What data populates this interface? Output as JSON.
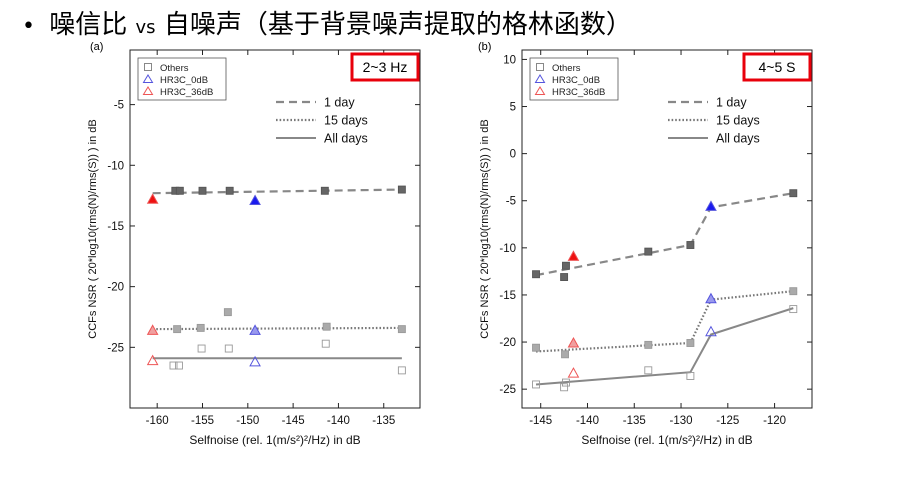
{
  "title": {
    "bullet": "•",
    "part1": "噪信比",
    "part2": "vs",
    "part3": "自噪声（基于背景噪声提取的格林函数）"
  },
  "chart_data": [
    {
      "type": "scatter",
      "panel_label": "(a)",
      "badge": "2~3 Hz",
      "badge_color": "#e8000b",
      "xlabel": "Selfnoise (rel. 1(m/s²)²/Hz) in dB",
      "ylabel": "CCFs NSR ( 20*log10(rms(N)/rms(S)) ) in dB",
      "xlim": [
        -163,
        -131
      ],
      "ylim": [
        -30,
        -0.5
      ],
      "xticks": [
        -160,
        -155,
        -150,
        -145,
        -140,
        -135
      ],
      "yticks": [
        -5,
        -10,
        -15,
        -20,
        -25
      ],
      "legend_markers": [
        "Others",
        "HR3C_0dB",
        "HR3C_36dB"
      ],
      "legend_lines": [
        "1 day",
        "15 days",
        "All days"
      ],
      "grid": false,
      "series": [
        {
          "period": "1 day",
          "style": "filled",
          "others": [
            [
              -158,
              -12.1
            ],
            [
              -157.5,
              -12.1
            ],
            [
              -155,
              -12.1
            ],
            [
              -152,
              -12.1
            ],
            [
              -141.5,
              -12.1
            ],
            [
              -133,
              -12.0
            ]
          ],
          "hr3c_0db": [
            [
              -149.2,
              -12.9
            ]
          ],
          "hr3c_36db": [
            [
              -160.5,
              -12.8
            ]
          ],
          "fit": [
            [
              -160.5,
              -12.3
            ],
            [
              -133,
              -12.0
            ]
          ]
        },
        {
          "period": "15 days",
          "style": "half",
          "others": [
            [
              -157.8,
              -23.5
            ],
            [
              -155.2,
              -23.4
            ],
            [
              -152.2,
              -22.1
            ],
            [
              -141.3,
              -23.3
            ],
            [
              -133,
              -23.5
            ]
          ],
          "hr3c_0db": [
            [
              -149.2,
              -23.6
            ]
          ],
          "hr3c_36db": [
            [
              -160.5,
              -23.6
            ]
          ],
          "fit": [
            [
              -160.5,
              -23.5
            ],
            [
              -133,
              -23.4
            ]
          ]
        },
        {
          "period": "All days",
          "style": "open",
          "others": [
            [
              -158.2,
              -26.5
            ],
            [
              -157.6,
              -26.5
            ],
            [
              -155.1,
              -25.1
            ],
            [
              -152.1,
              -25.1
            ],
            [
              -141.4,
              -24.7
            ],
            [
              -133,
              -26.9
            ]
          ],
          "hr3c_0db": [
            [
              -149.2,
              -26.2
            ]
          ],
          "hr3c_36db": [
            [
              -160.5,
              -26.1
            ]
          ],
          "fit": [
            [
              -160.5,
              -25.9
            ],
            [
              -133,
              -25.9
            ]
          ]
        }
      ]
    },
    {
      "type": "scatter",
      "panel_label": "(b)",
      "badge": "4~5 S",
      "badge_color": "#e8000b",
      "xlabel": "Selfnoise (rel. 1(m/s²)²/Hz) in dB",
      "ylabel": "CCFs NSR ( 20*log10(rms(N)/rms(S)) ) in dB",
      "xlim": [
        -147,
        -116
      ],
      "ylim": [
        -27,
        11
      ],
      "xticks": [
        -145,
        -140,
        -135,
        -130,
        -125,
        -120
      ],
      "yticks": [
        10,
        5,
        0,
        -5,
        -10,
        -15,
        -20,
        -25
      ],
      "legend_markers": [
        "Others",
        "HR3C_0dB",
        "HR3C_36dB"
      ],
      "legend_lines": [
        "1 day",
        "15 days",
        "All days"
      ],
      "grid": false,
      "series": [
        {
          "period": "1 day",
          "style": "filled",
          "others": [
            [
              -145.5,
              -12.8
            ],
            [
              -142.5,
              -13.1
            ],
            [
              -142.3,
              -11.9
            ],
            [
              -133.5,
              -10.4
            ],
            [
              -129,
              -9.7
            ],
            [
              -118,
              -4.2
            ]
          ],
          "hr3c_0db": [
            [
              -126.8,
              -5.6
            ]
          ],
          "hr3c_36db": [
            [
              -141.5,
              -10.9
            ]
          ],
          "fit": [
            [
              -145.5,
              -12.9
            ],
            [
              -129,
              -9.7
            ],
            [
              -126.8,
              -5.7
            ],
            [
              -118,
              -4.2
            ]
          ]
        },
        {
          "period": "15 days",
          "style": "half",
          "others": [
            [
              -145.5,
              -20.6
            ],
            [
              -142.4,
              -21.3
            ],
            [
              -133.5,
              -20.3
            ],
            [
              -129,
              -20.1
            ],
            [
              -118,
              -14.6
            ]
          ],
          "hr3c_0db": [
            [
              -126.8,
              -15.4
            ]
          ],
          "hr3c_36db": [
            [
              -141.5,
              -20.1
            ]
          ],
          "fit": [
            [
              -145.5,
              -21.0
            ],
            [
              -129,
              -20.1
            ],
            [
              -126.8,
              -15.5
            ],
            [
              -118,
              -14.6
            ]
          ]
        },
        {
          "period": "All days",
          "style": "open",
          "others": [
            [
              -145.5,
              -24.5
            ],
            [
              -142.5,
              -24.8
            ],
            [
              -142.3,
              -24.3
            ],
            [
              -133.5,
              -23.0
            ],
            [
              -129,
              -23.6
            ],
            [
              -118,
              -16.5
            ]
          ],
          "hr3c_0db": [
            [
              -126.8,
              -18.9
            ]
          ],
          "hr3c_36db": [
            [
              -141.5,
              -23.3
            ]
          ],
          "fit": [
            [
              -145.5,
              -24.5
            ],
            [
              -129,
              -23.2
            ],
            [
              -126.8,
              -19.2
            ],
            [
              -118,
              -16.4
            ]
          ]
        }
      ]
    }
  ]
}
